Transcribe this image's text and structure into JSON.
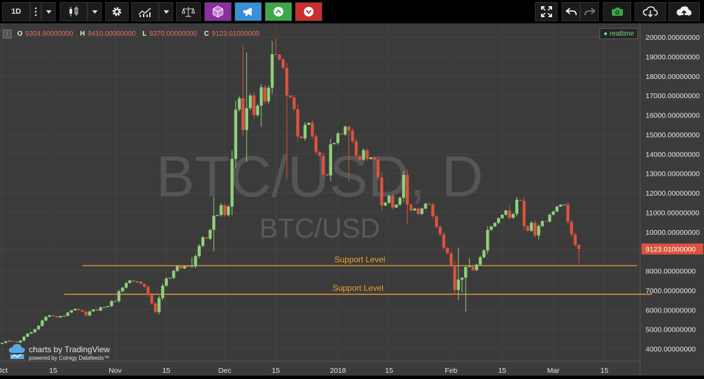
{
  "toolbar": {
    "interval": "1D",
    "colors": {
      "bg": "#000000",
      "button": "#1b1b1b",
      "purple": "#8a2f9e",
      "blue": "#3a8fd9",
      "green": "#3da84a",
      "red": "#c9302c",
      "camera_green": "#3da84a"
    }
  },
  "legend": {
    "o_label": "O",
    "o_value": "9304.90000000",
    "h_label": "H",
    "h_value": "9410.00000000",
    "l_label": "L",
    "l_value": "8370.00000000",
    "c_label": "C",
    "c_value": "9123.01000000"
  },
  "realtime_label": "realtime",
  "branding": {
    "line1": "charts by TradingView",
    "line2": "powered by Coinigy Datafeeds™"
  },
  "chart_data": {
    "type": "candlestick",
    "watermark_main": "BTC/USD, D",
    "watermark_sub": "BTC/USD",
    "y_ticks": [
      "20000.00000000",
      "19000.00000000",
      "18000.00000000",
      "17000.00000000",
      "16000.00000000",
      "15000.00000000",
      "14000.00000000",
      "13000.00000000",
      "12000.00000000",
      "11000.00000000",
      "10000.00000000",
      "9000.00000000",
      "8000.00000000",
      "7000.00000000",
      "6000.00000000",
      "5000.00000000",
      "4000.00000000"
    ],
    "y_values": [
      20000,
      19000,
      18000,
      17000,
      16000,
      15000,
      14000,
      13000,
      12000,
      11000,
      10000,
      9000,
      8000,
      7000,
      6000,
      5000,
      4000
    ],
    "ylim": [
      3700,
      20500
    ],
    "x_ticks": [
      {
        "label": "Oct",
        "day": 0
      },
      {
        "label": "15",
        "day": 14
      },
      {
        "label": "Nov",
        "day": 31
      },
      {
        "label": "15",
        "day": 45
      },
      {
        "label": "Dec",
        "day": 61
      },
      {
        "label": "15",
        "day": 75
      },
      {
        "label": "2018",
        "day": 92
      },
      {
        "label": "15",
        "day": 106
      },
      {
        "label": "Feb",
        "day": 123
      },
      {
        "label": "15",
        "day": 137
      },
      {
        "label": "Mar",
        "day": 151
      },
      {
        "label": "15",
        "day": 165
      }
    ],
    "last_price": 9123.01,
    "last_price_label": "9123.01000000",
    "support_lines": [
      {
        "label": "Support Level",
        "price": 8270,
        "from_day": 22,
        "to_day": 174
      },
      {
        "label": "Support Level",
        "price": 6800,
        "from_day": 17,
        "to_day": 178
      }
    ],
    "closes": [
      4300,
      4380,
      4410,
      4370,
      4320,
      4420,
      4620,
      4780,
      4850,
      5000,
      5180,
      5450,
      5640,
      5720,
      5680,
      5610,
      5680,
      5690,
      5860,
      5970,
      6050,
      5980,
      5900,
      5710,
      5920,
      6020,
      5960,
      6130,
      6140,
      6190,
      6450,
      6450,
      6950,
      7140,
      7380,
      7510,
      7450,
      7450,
      7330,
      7180,
      6770,
      6330,
      5890,
      6600,
      7240,
      7610,
      7640,
      8000,
      8240,
      8120,
      8240,
      8210,
      8230,
      8760,
      9280,
      9720,
      9650,
      10100,
      10830,
      10870,
      11370,
      10860,
      11300,
      13750,
      16280,
      16860,
      15230,
      16350,
      17000,
      16000,
      16480,
      17420,
      16700,
      17400,
      19120,
      19100,
      18850,
      18420,
      17000,
      16900,
      16300,
      14900,
      14800,
      15500,
      15600,
      14900,
      14100,
      13900,
      12950,
      12900,
      14500,
      14560,
      15050,
      15000,
      15400,
      15200,
      14650,
      13900,
      13700,
      14200,
      13740,
      13830,
      13700,
      12800,
      11350,
      11500,
      11850,
      11250,
      11400,
      11750,
      12920,
      11400,
      11100,
      11200,
      10920,
      11200,
      11450,
      11400,
      10800,
      10260,
      9870,
      9180,
      8900,
      8280,
      7020,
      7550,
      7650,
      8200,
      8230,
      8040,
      8320,
      8700,
      9050,
      10100,
      10280,
      10460,
      10700,
      10880,
      11100,
      10720,
      10920,
      11650,
      11600,
      10300,
      10060,
      10470,
      9820,
      10300,
      10550,
      10530,
      10880,
      11050,
      11300,
      11400,
      11400,
      10520,
      9870,
      9330,
      9123
    ],
    "highs_extra": {
      "52": 8700,
      "58": 11800,
      "66": 19600,
      "67": 19200,
      "74": 19800,
      "75": 19900,
      "125": 9200,
      "128": 8650,
      "139": 11400,
      "143": 11800
    },
    "lows_extra": {
      "58": 9000,
      "67": 13600,
      "71": 15400,
      "78": 12700,
      "95": 12600,
      "111": 10400,
      "125": 6500,
      "126": 6900,
      "127": 5900,
      "147": 9600,
      "158": 8400
    }
  }
}
